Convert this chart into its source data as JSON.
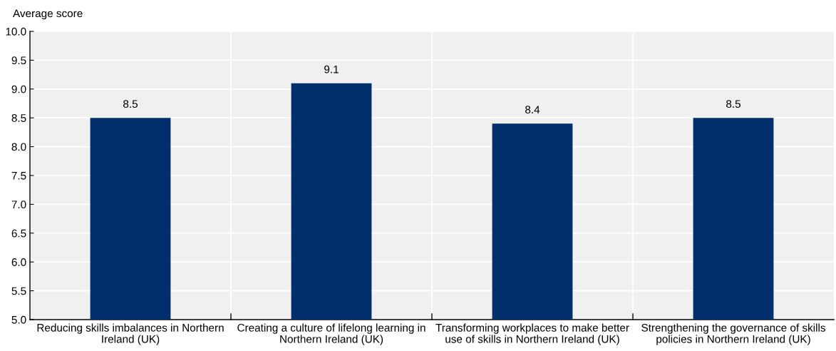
{
  "chart_data": {
    "type": "bar",
    "ylabel": "Average score",
    "categories": [
      "Reducing skills imbalances in Northern\nIreland (UK)",
      "Creating a culture of lifelong learning in\nNorthern Ireland (UK)",
      "Transforming workplaces to make better\nuse of skills in Northern Ireland (UK)",
      "Strengthening the governance of skills\npolicies in Northern Ireland (UK)"
    ],
    "values": [
      8.5,
      9.1,
      8.4,
      8.5
    ],
    "color": "#002f6c",
    "data_labels": true,
    "ylim": [
      5.0,
      10.0
    ],
    "yticks": [
      {
        "value": 5.0,
        "label": "5.0"
      },
      5.5,
      {
        "value": 6.0,
        "label": "6.0"
      },
      6.5,
      {
        "value": 7.0,
        "label": "7.0"
      },
      7.5,
      {
        "value": 8.0,
        "label": "8.0"
      },
      8.5,
      {
        "value": 9.0,
        "label": "9.0"
      },
      9.5,
      {
        "value": 10.0,
        "label": "10.0"
      }
    ],
    "grid": "y"
  }
}
